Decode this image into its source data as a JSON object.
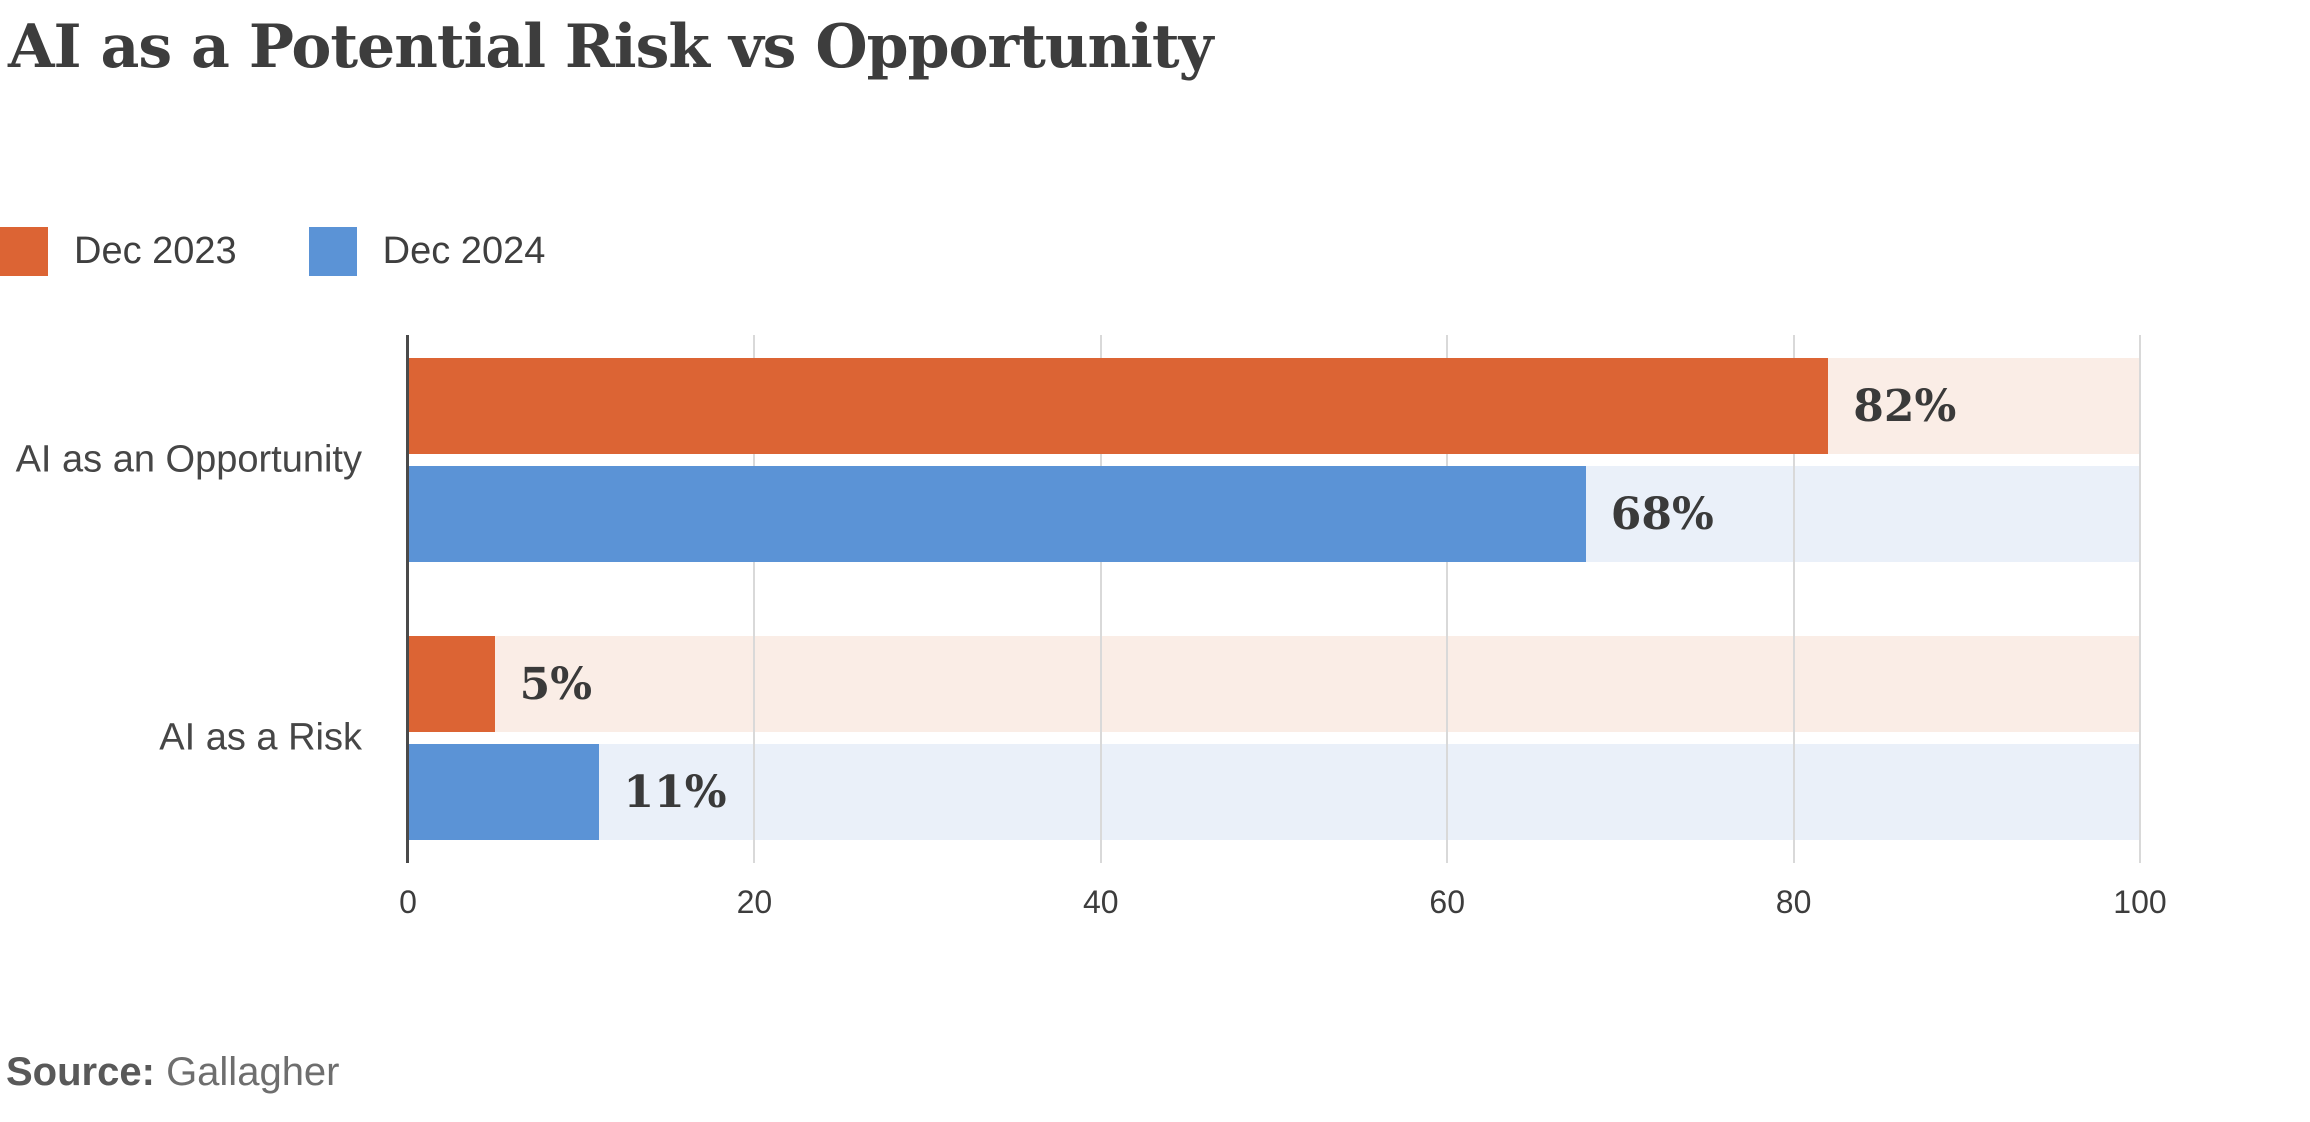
{
  "title": "AI as a Potential Risk vs Opportunity",
  "legend": [
    {
      "label": "Dec 2023",
      "color": "#DC6434"
    },
    {
      "label": "Dec 2024",
      "color": "#5B93D6"
    }
  ],
  "source": {
    "prefix": "Source:",
    "text": "Gallagher"
  },
  "colors": {
    "orange": "#DC6434",
    "blue": "#5B93D6",
    "orange_track": "#FAEDE6",
    "blue_track": "#EAF0F9",
    "gridline": "#D9D9D9",
    "axis": "#4A4A4A",
    "text_dark": "#3D3D3D"
  },
  "chart_data": {
    "type": "bar",
    "orientation": "horizontal",
    "title": "AI as a Potential Risk vs Opportunity",
    "categories": [
      "AI as an Opportunity",
      "AI as a Risk"
    ],
    "series": [
      {
        "name": "Dec 2023",
        "values": [
          82,
          5
        ],
        "color": "#DC6434",
        "track_color": "#FAEDE6"
      },
      {
        "name": "Dec 2024",
        "values": [
          68,
          11
        ],
        "color": "#5B93D6",
        "track_color": "#EAF0F9"
      }
    ],
    "value_labels": [
      [
        "82%",
        "5%"
      ],
      [
        "68%",
        "11%"
      ]
    ],
    "value_suffix": "%",
    "xlabel": "",
    "ylabel": "",
    "xlim": [
      0,
      100
    ],
    "xticks": [
      0,
      20,
      40,
      60,
      80,
      100
    ],
    "grid": "vertical",
    "legend_position": "top-left",
    "source": "Gallagher"
  }
}
